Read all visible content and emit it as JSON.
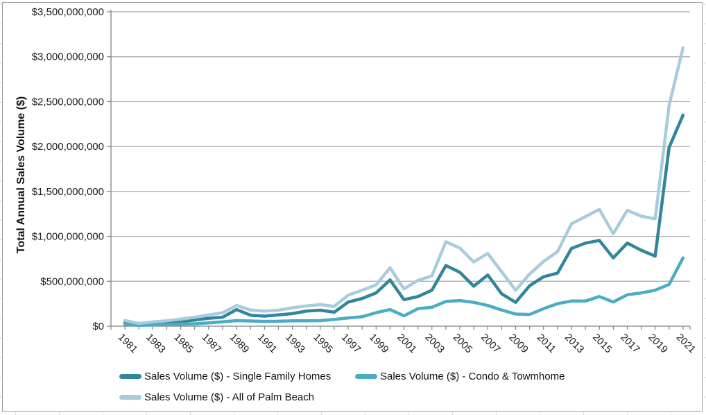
{
  "chart_data": {
    "type": "line",
    "title": "",
    "xlabel": "",
    "ylabel": "Total Annual Sales Volume ($)",
    "grid": "horizontal",
    "legend_position": "bottom",
    "y_axis": {
      "min": 0,
      "max": 3500000000,
      "step": 500000000,
      "tick_labels": [
        "$0",
        "$500,000,000",
        "$1,000,000,000",
        "$1,500,000,000",
        "$2,000,000,000",
        "$2,500,000,000",
        "$3,000,000,000",
        "$3,500,000,000"
      ]
    },
    "x": [
      1981,
      1982,
      1983,
      1984,
      1985,
      1986,
      1987,
      1988,
      1989,
      1990,
      1991,
      1992,
      1993,
      1994,
      1995,
      1996,
      1997,
      1998,
      1999,
      2000,
      2001,
      2002,
      2003,
      2004,
      2005,
      2006,
      2007,
      2008,
      2009,
      2010,
      2011,
      2012,
      2013,
      2014,
      2015,
      2016,
      2017,
      2018,
      2019,
      2020,
      2021
    ],
    "x_tick_labels": [
      "1981",
      "1983",
      "1985",
      "1987",
      "1989",
      "1991",
      "1993",
      "1995",
      "1997",
      "1999",
      "2001",
      "2003",
      "2005",
      "2007",
      "2009",
      "2011",
      "2013",
      "2015",
      "2017",
      "2019",
      "2021"
    ],
    "series": [
      {
        "name": "Sales Volume ($) - Single Family Homes",
        "color": "#31859C",
        "values": [
          40000000,
          18000000,
          28000000,
          35000000,
          50000000,
          68000000,
          88000000,
          100000000,
          185000000,
          122000000,
          112000000,
          125000000,
          140000000,
          168000000,
          178000000,
          155000000,
          268000000,
          308000000,
          370000000,
          515000000,
          295000000,
          330000000,
          400000000,
          675000000,
          600000000,
          445000000,
          570000000,
          360000000,
          265000000,
          450000000,
          550000000,
          590000000,
          865000000,
          925000000,
          955000000,
          760000000,
          925000000,
          845000000,
          780000000,
          1990000000,
          2350000000
        ]
      },
      {
        "name": "Sales Volume ($) - Condo & Towmhome",
        "color": "#4BACC6",
        "values": [
          22000000,
          10000000,
          14000000,
          17000000,
          21000000,
          27000000,
          36000000,
          48000000,
          62000000,
          58000000,
          53000000,
          55000000,
          60000000,
          60000000,
          62000000,
          75000000,
          92000000,
          105000000,
          150000000,
          185000000,
          115000000,
          195000000,
          210000000,
          275000000,
          285000000,
          265000000,
          230000000,
          180000000,
          135000000,
          130000000,
          195000000,
          250000000,
          280000000,
          280000000,
          330000000,
          270000000,
          350000000,
          370000000,
          400000000,
          465000000,
          760000000
        ]
      },
      {
        "name": "Sales Volume ($) - All of Palm Beach",
        "color": "#A9CCDD",
        "values": [
          63000000,
          30000000,
          48000000,
          60000000,
          78000000,
          100000000,
          125000000,
          150000000,
          230000000,
          180000000,
          168000000,
          178000000,
          205000000,
          225000000,
          240000000,
          220000000,
          345000000,
          400000000,
          460000000,
          650000000,
          415000000,
          510000000,
          560000000,
          940000000,
          870000000,
          715000000,
          810000000,
          605000000,
          400000000,
          580000000,
          720000000,
          830000000,
          1140000000,
          1220000000,
          1300000000,
          1030000000,
          1290000000,
          1225000000,
          1195000000,
          2460000000,
          3100000000
        ]
      }
    ],
    "colors": {
      "gridline": "#A6A6A6",
      "axis": "#808080",
      "label": "#1A1A1A",
      "chart_border": "#9C9C9C",
      "sheet_gridline": "#D9D9D9"
    }
  }
}
